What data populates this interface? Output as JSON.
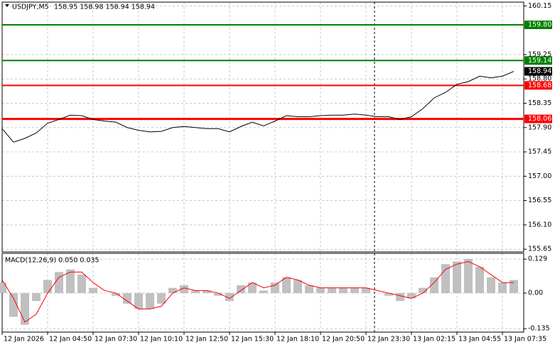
{
  "chart_data": [
    {
      "type": "line",
      "title": "USDJPY,M5",
      "ohlc": "158.95 158.98 158.94 158.94",
      "categories": [
        "12 Jan 2026",
        null,
        null,
        null,
        "12 Jan 04:50",
        null,
        null,
        null,
        "12 Jan 07:30",
        null,
        null,
        null,
        "12 Jan 10:10",
        null,
        null,
        null,
        "12 Jan 12:50",
        null,
        null,
        null,
        "12 Jan 15:30",
        null,
        null,
        null,
        "12 Jan 18:10",
        null,
        null,
        null,
        "12 Jan 20:50",
        null,
        null,
        null,
        "12 Jan 23:30",
        null,
        null,
        null,
        "13 Jan 02:15",
        null,
        null,
        null,
        "13 Jan 04:55",
        null,
        null,
        null,
        "13 Jan 07:35",
        null
      ],
      "series": [
        {
          "color": "#000000",
          "values": [
            157.88,
            157.63,
            157.7,
            157.8,
            157.98,
            158.05,
            158.13,
            158.12,
            158.05,
            158.02,
            158.0,
            157.9,
            157.85,
            157.82,
            157.83,
            157.9,
            157.92,
            157.9,
            157.88,
            157.88,
            157.82,
            157.92,
            158.0,
            157.93,
            158.02,
            158.12,
            158.1,
            158.1,
            158.12,
            158.13,
            158.13,
            158.15,
            158.13,
            158.1,
            158.1,
            158.05,
            158.1,
            158.25,
            158.45,
            158.55,
            158.7,
            158.75,
            158.85,
            158.82,
            158.85,
            158.94
          ]
        }
      ],
      "ylim": [
        155.6,
        160.22
      ],
      "yticks": [
        160.15,
        159.25,
        {
          "value": 158.8,
          "label": "158.80"
        },
        158.35,
        {
          "value": 157.9,
          "label": "157.90"
        },
        157.45,
        {
          "value": 157.0,
          "label": "157.00"
        },
        156.55,
        {
          "value": 156.1,
          "label": "156.10"
        },
        155.65
      ],
      "levels": [
        {
          "value": 159.8,
          "label": "159.80",
          "color": "#008000"
        },
        {
          "value": 159.14,
          "label": "159.14",
          "color": "#008000"
        },
        {
          "value": 158.68,
          "label": "158.68",
          "color": "#ff0000"
        },
        {
          "value": 158.06,
          "label": "158.06",
          "color": "#ff0000"
        }
      ],
      "last_price": {
        "value": 158.94,
        "label": "158.94"
      },
      "grid": true
    },
    {
      "type": "macd",
      "title": "MACD(12,26,9) 0.050 0.035",
      "histogram": {
        "color": "#c0c0c0",
        "values": [
          0.04,
          -0.09,
          -0.12,
          -0.03,
          0.05,
          0.08,
          0.09,
          0.07,
          0.02,
          0.0,
          -0.01,
          -0.04,
          -0.06,
          -0.06,
          -0.04,
          0.02,
          0.03,
          0.01,
          0.01,
          -0.01,
          -0.03,
          0.03,
          0.04,
          0.01,
          0.04,
          0.06,
          0.05,
          0.03,
          0.02,
          0.02,
          0.02,
          0.02,
          0.02,
          0.0,
          -0.01,
          -0.03,
          -0.02,
          0.02,
          0.06,
          0.11,
          0.12,
          0.13,
          0.1,
          0.06,
          0.04,
          0.05
        ]
      },
      "signal": {
        "color": "#ff0000",
        "values": [
          0.05,
          -0.02,
          -0.11,
          -0.08,
          0.0,
          0.06,
          0.08,
          0.08,
          0.04,
          0.01,
          0.0,
          -0.03,
          -0.06,
          -0.06,
          -0.05,
          0.0,
          0.02,
          0.01,
          0.01,
          0.0,
          -0.02,
          0.01,
          0.04,
          0.02,
          0.03,
          0.06,
          0.05,
          0.03,
          0.02,
          0.02,
          0.02,
          0.02,
          0.02,
          0.01,
          0.0,
          -0.01,
          -0.02,
          0.0,
          0.04,
          0.09,
          0.11,
          0.12,
          0.1,
          0.07,
          0.04,
          0.04
        ]
      },
      "ylim": [
        -0.148,
        0.151
      ],
      "yticks": [
        0.129,
        {
          "value": 0,
          "label": "0.00"
        },
        -0.135
      ],
      "grid": true
    }
  ]
}
